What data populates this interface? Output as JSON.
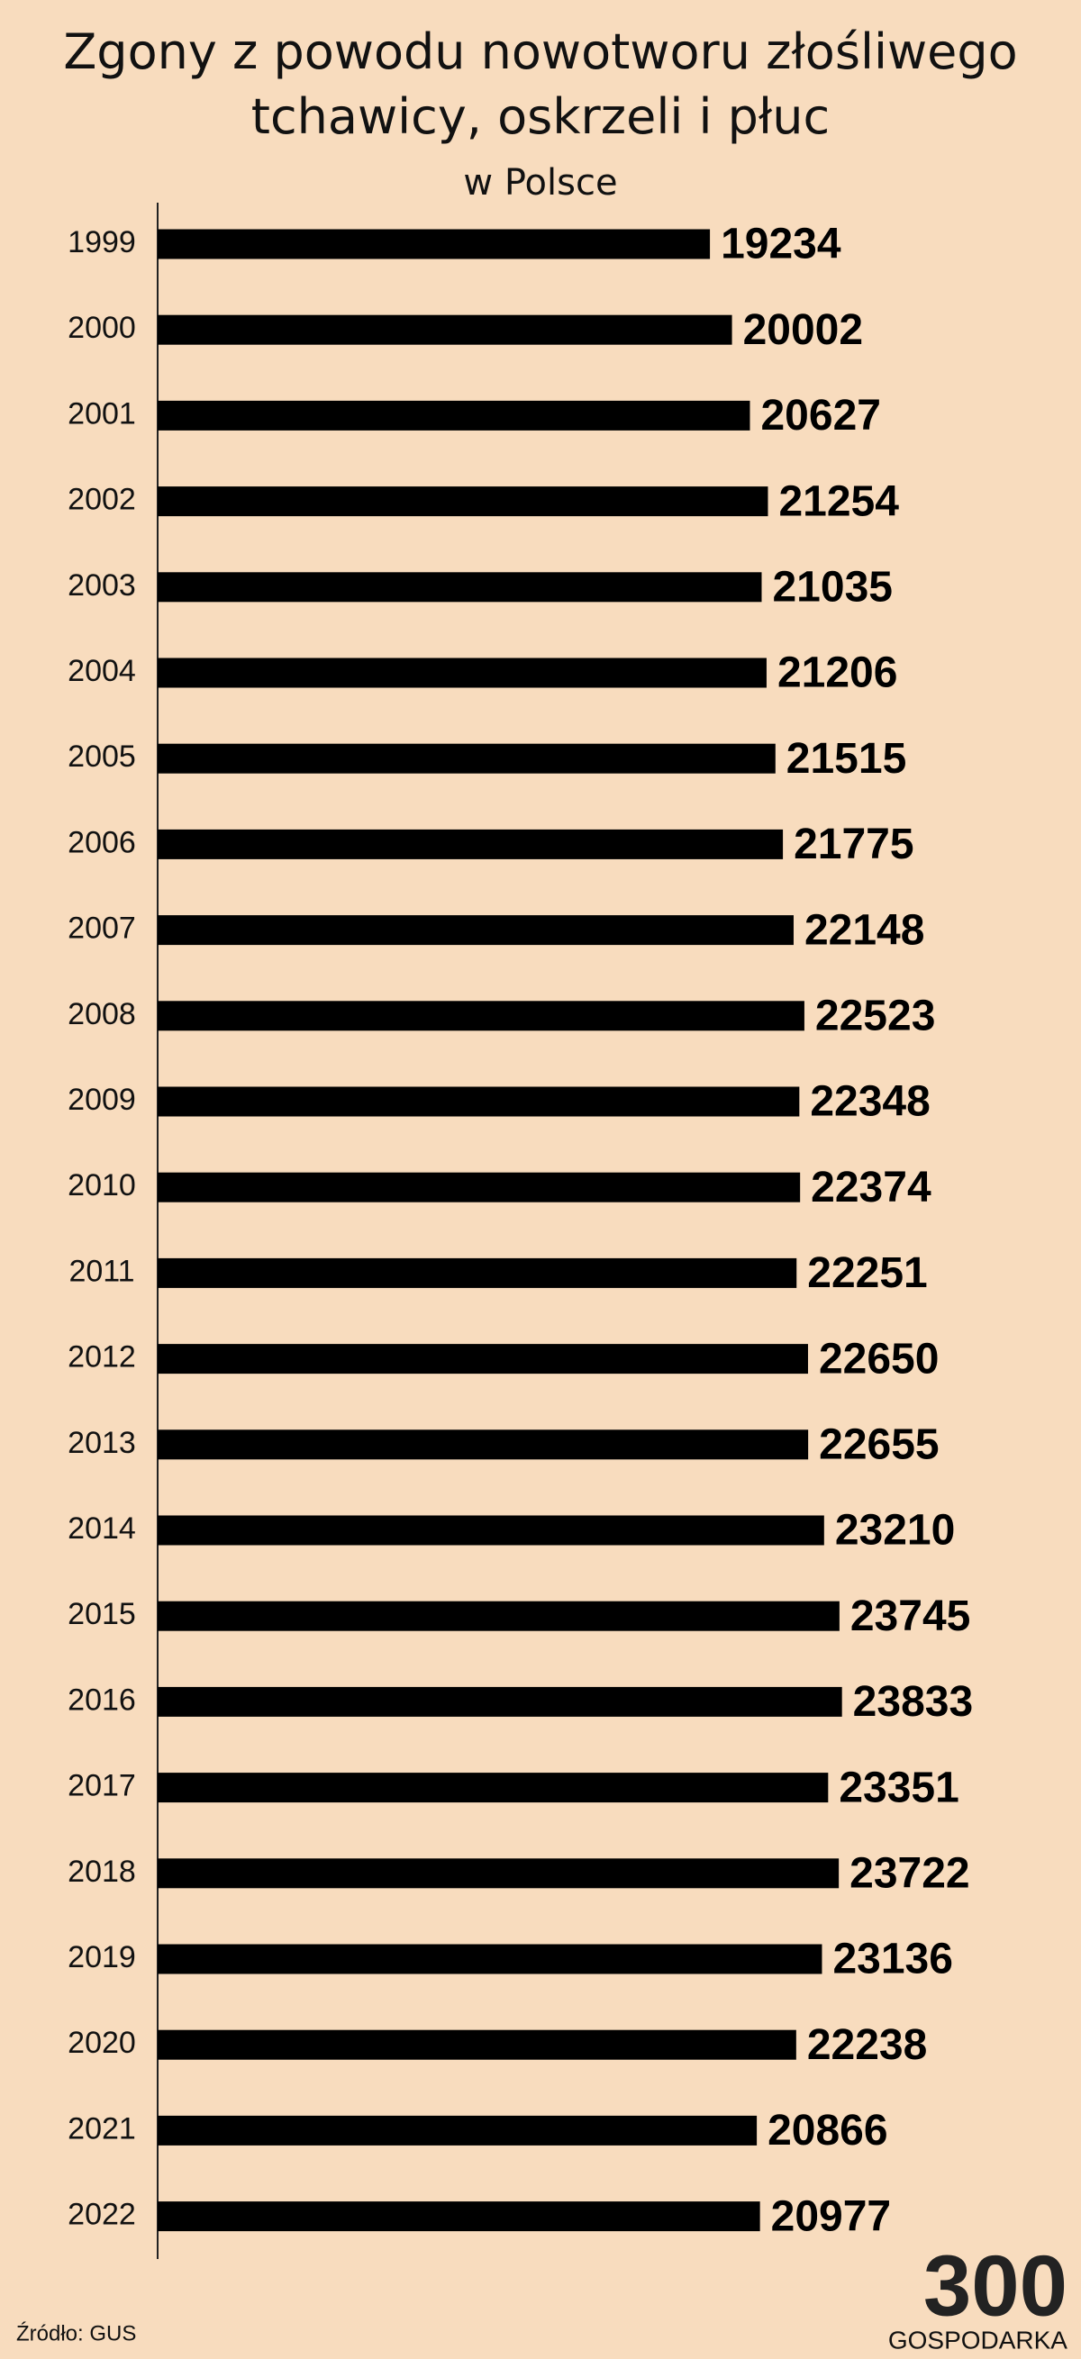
{
  "chart_data": {
    "type": "barh",
    "title": "Zgony z powodu nowotworu złośliwego tchawicy, oskrzeli i płuc",
    "subtitle": "w Polsce",
    "categories": [
      "1999",
      "2000",
      "2001",
      "2002",
      "2003",
      "2004",
      "2005",
      "2006",
      "2007",
      "2008",
      "2009",
      "2010",
      "2011",
      "2012",
      "2013",
      "2014",
      "2015",
      "2016",
      "2017",
      "2018",
      "2019",
      "2020",
      "2021",
      "2022"
    ],
    "values": [
      19234,
      20002,
      20627,
      21254,
      21035,
      21206,
      21515,
      21775,
      22148,
      22523,
      22348,
      22374,
      22251,
      22650,
      22655,
      23210,
      23745,
      23833,
      23351,
      23722,
      23136,
      22238,
      20866,
      20977
    ],
    "color": "#000000",
    "xlim": [
      0,
      32000
    ],
    "source": "Źródło: GUS",
    "logo": {
      "number": "300",
      "label": "GOSPODARKA"
    }
  }
}
